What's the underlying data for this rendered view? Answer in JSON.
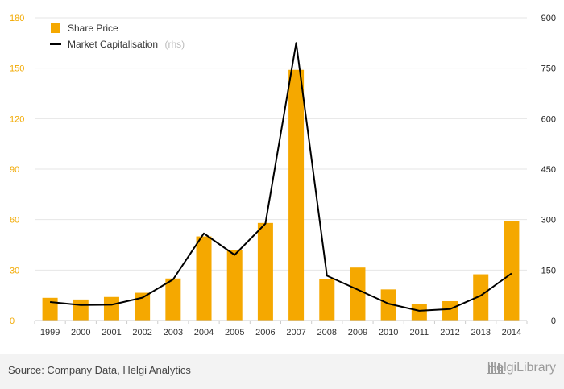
{
  "chart_data": {
    "type": "bar",
    "categories": [
      "1999",
      "2000",
      "2001",
      "2002",
      "2003",
      "2004",
      "2005",
      "2006",
      "2007",
      "2008",
      "2009",
      "2010",
      "2011",
      "2012",
      "2013",
      "2014"
    ],
    "series": [
      {
        "name": "Share Price",
        "axis": "left",
        "kind": "bar",
        "color": "#f5a800",
        "values": [
          13.5,
          12.5,
          14,
          16.5,
          25,
          50,
          42,
          58,
          149,
          24.5,
          31.5,
          18.5,
          10,
          11.5,
          27.5,
          59
        ]
      },
      {
        "name": "Market Capitalisation",
        "name_note": "(rhs)",
        "axis": "right",
        "kind": "line",
        "color": "#000000",
        "values": [
          55,
          46,
          47,
          68,
          122,
          259,
          195,
          288,
          825,
          133,
          92,
          50,
          29,
          34,
          74,
          140
        ]
      }
    ],
    "ylim_left": [
      0,
      180
    ],
    "yticks_left": [
      "0",
      "30",
      "60",
      "90",
      "120",
      "150",
      "180"
    ],
    "ylim_right": [
      0,
      900
    ],
    "yticks_right": [
      "0",
      "150",
      "300",
      "450",
      "600",
      "750",
      "900"
    ],
    "grid": "horizontal",
    "legend_position": "top-left"
  },
  "footer": {
    "source": "Source: Company Data, Helgi Analytics",
    "brand": "HelgiLibrary"
  }
}
